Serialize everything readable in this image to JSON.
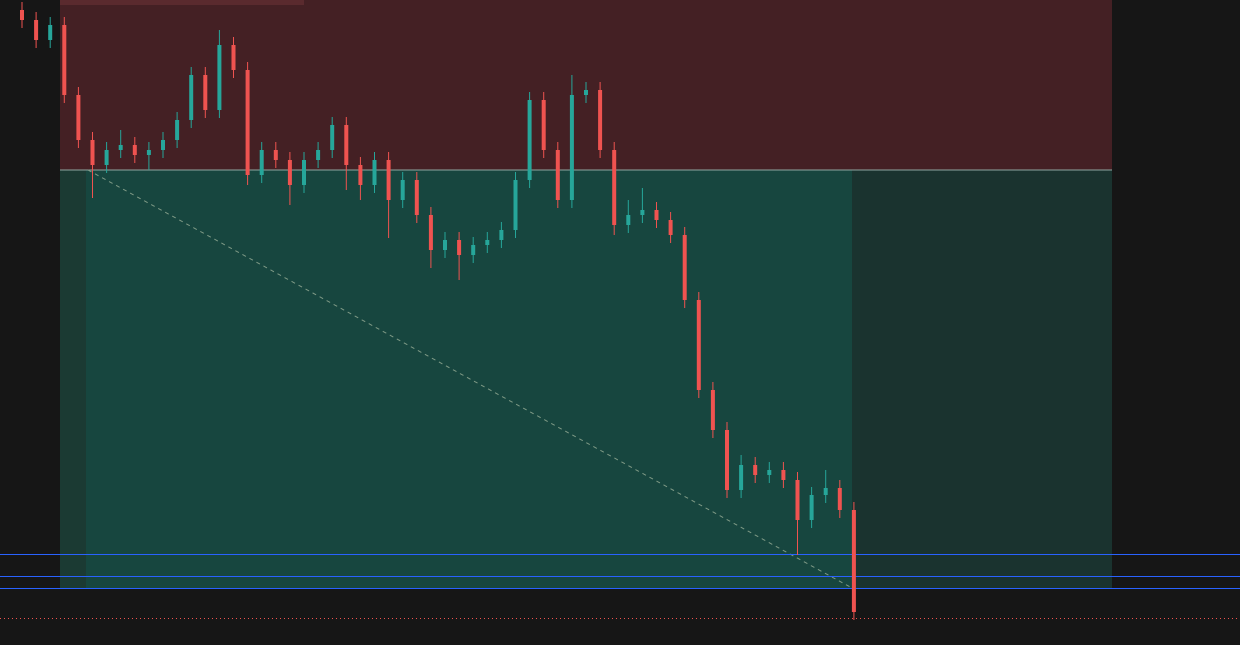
{
  "chart_data": {
    "type": "candlestick",
    "ylim": [
      0,
      645
    ],
    "up_color": "#26a69a",
    "down_color": "#ef5350",
    "open": [
      635,
      625,
      605,
      620,
      550,
      505,
      480,
      495,
      500,
      490,
      495,
      505,
      525,
      570,
      535,
      600,
      575,
      470,
      495,
      485,
      460,
      485,
      495,
      520,
      480,
      460,
      485,
      445,
      465,
      430,
      395,
      405,
      390,
      400,
      405,
      415,
      465,
      545,
      495,
      445,
      550,
      555,
      495,
      420,
      430,
      435,
      425,
      410,
      345,
      255,
      215,
      155,
      180,
      170,
      175,
      165,
      125,
      150,
      157,
      135
    ],
    "high": [
      643,
      633,
      628,
      628,
      558,
      513,
      503,
      515,
      508,
      503,
      513,
      533,
      578,
      578,
      615,
      608,
      583,
      503,
      503,
      493,
      493,
      503,
      528,
      528,
      488,
      493,
      493,
      473,
      473,
      438,
      413,
      413,
      408,
      413,
      423,
      473,
      553,
      553,
      503,
      570,
      563,
      563,
      503,
      445,
      457,
      443,
      433,
      418,
      353,
      263,
      223,
      190,
      188,
      183,
      183,
      173,
      158,
      175,
      165,
      143
    ],
    "low": [
      617,
      597,
      597,
      542,
      497,
      447,
      472,
      487,
      482,
      475,
      487,
      497,
      517,
      527,
      527,
      567,
      460,
      462,
      477,
      440,
      452,
      477,
      487,
      455,
      445,
      452,
      407,
      437,
      422,
      377,
      387,
      365,
      382,
      392,
      397,
      407,
      457,
      487,
      437,
      437,
      542,
      487,
      410,
      412,
      422,
      417,
      402,
      337,
      247,
      207,
      147,
      147,
      162,
      162,
      157,
      90,
      117,
      142,
      127,
      25
    ],
    "close": [
      625,
      605,
      620,
      550,
      505,
      480,
      495,
      500,
      490,
      495,
      505,
      525,
      570,
      535,
      600,
      575,
      470,
      495,
      485,
      460,
      485,
      495,
      520,
      480,
      460,
      485,
      445,
      465,
      430,
      395,
      405,
      390,
      400,
      405,
      415,
      465,
      545,
      495,
      445,
      550,
      555,
      495,
      420,
      430,
      435,
      425,
      410,
      345,
      255,
      215,
      155,
      180,
      170,
      175,
      165,
      125,
      150,
      157,
      135,
      33
    ]
  }
}
